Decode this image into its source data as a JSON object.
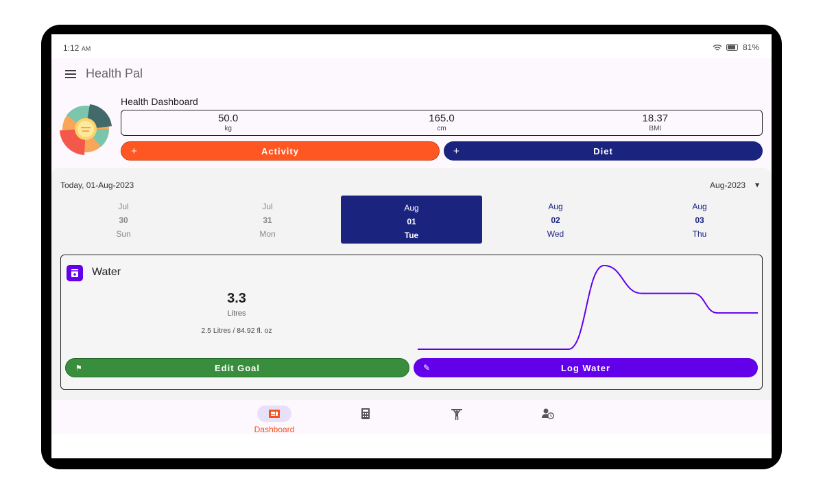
{
  "status": {
    "time": "1:12",
    "ampm": "AM",
    "battery": "81%"
  },
  "appbar": {
    "title": "Health Pal"
  },
  "dashboard": {
    "title": "Health Dashboard",
    "metrics": [
      {
        "value": "50.0",
        "unit": "kg"
      },
      {
        "value": "165.0",
        "unit": "cm"
      },
      {
        "value": "18.37",
        "unit": "BMI"
      }
    ],
    "activity_label": "Activity",
    "diet_label": "Diet"
  },
  "calendar": {
    "today": "Today, 01-Aug-2023",
    "month": "Aug-2023",
    "days": [
      {
        "m": "Jul",
        "d": "30",
        "w": "Sun"
      },
      {
        "m": "Jul",
        "d": "31",
        "w": "Mon"
      },
      {
        "m": "Aug",
        "d": "01",
        "w": "Tue"
      },
      {
        "m": "Aug",
        "d": "02",
        "w": "Wed"
      },
      {
        "m": "Aug",
        "d": "03",
        "w": "Thu"
      }
    ]
  },
  "water": {
    "title": "Water",
    "amount": "3.3",
    "unit": "Litres",
    "goal": "2.5  Litres / 84.92  fl. oz",
    "edit_goal_label": "Edit Goal",
    "log_label": "Log Water"
  },
  "chart_data": {
    "type": "line",
    "x": [
      0,
      4.43,
      5.48,
      6.59,
      8.1,
      8.81,
      10
    ],
    "y": [
      0,
      0,
      3.3,
      2.2,
      2.2,
      1.43,
      1.43
    ],
    "xlim": [
      0,
      10
    ],
    "ylim": [
      0,
      3.3
    ],
    "color": "#6200ea"
  },
  "nav": {
    "dashboard_label": "Dashboard"
  },
  "colors": {
    "activity": "#ff5722",
    "diet": "#1a237e",
    "edit": "#388e3c",
    "log": "#6200ea"
  }
}
